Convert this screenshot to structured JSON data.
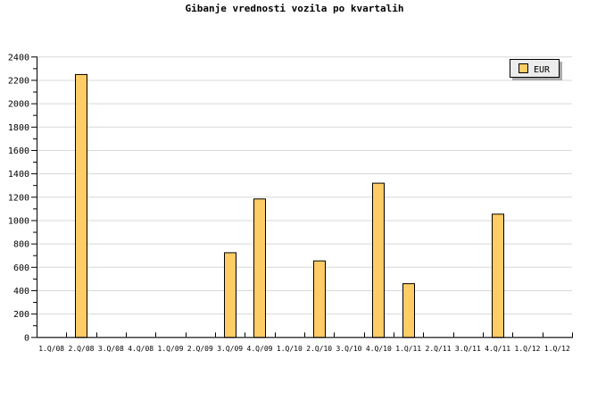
{
  "chart_data": {
    "type": "bar",
    "title": "Gibanje vrednosti vozila po kvartalih",
    "xlabel": "",
    "ylabel": "",
    "categories": [
      "1.Q/08",
      "2.Q/08",
      "3.Q/08",
      "4.Q/08",
      "1.Q/09",
      "2.Q/09",
      "3.Q/09",
      "4.Q/09",
      "1.Q/10",
      "2.Q/10",
      "3.Q/10",
      "4.Q/10",
      "1.Q/11",
      "2.Q/11",
      "3.Q/11",
      "4.Q/11",
      "1.Q/12",
      "1.Q/12"
    ],
    "series": [
      {
        "name": "EUR",
        "color": "#ffcc66",
        "values": [
          0,
          2250,
          0,
          0,
          0,
          0,
          725,
          1185,
          0,
          655,
          0,
          1320,
          460,
          0,
          0,
          1055,
          0,
          0
        ]
      }
    ],
    "ylim": [
      0,
      2400
    ],
    "yticks": [
      0,
      200,
      400,
      600,
      800,
      1000,
      1200,
      1400,
      1600,
      1800,
      2000,
      2200,
      2400
    ],
    "grid": true,
    "legend": "top-right"
  }
}
